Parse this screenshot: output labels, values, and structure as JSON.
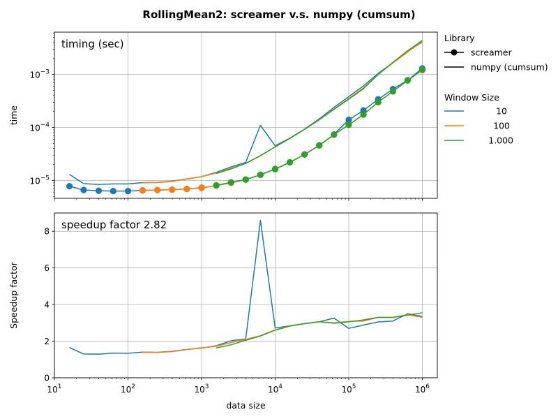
{
  "figure": {
    "title": "RollingMean2:  screamer v.s. numpy (cumsum)"
  },
  "legend": {
    "library_title": "Library",
    "library_items": [
      {
        "label": "screamer",
        "style": "line-marker"
      },
      {
        "label": "numpy (cumsum)",
        "style": "line"
      }
    ],
    "window_title": "Window Size",
    "window_items": [
      {
        "label": "10",
        "color": "#1f77b4"
      },
      {
        "label": "100",
        "color": "#ff7f0e"
      },
      {
        "label": "1.000",
        "color": "#2ca02c"
      }
    ]
  },
  "chart_data": [
    {
      "type": "line",
      "annotation": "timing (sec)",
      "ylabel": "time",
      "xscale": "log",
      "yscale": "log",
      "xlim": [
        10,
        1600000
      ],
      "ylim": [
        4.6e-06,
        0.0063
      ],
      "xticks": [
        {
          "v": 10,
          "base": "10",
          "exp": "1"
        },
        {
          "v": 100,
          "base": "10",
          "exp": "2"
        },
        {
          "v": 1000,
          "base": "10",
          "exp": "3"
        },
        {
          "v": 10000,
          "base": "10",
          "exp": "4"
        },
        {
          "v": 100000,
          "base": "10",
          "exp": "5"
        },
        {
          "v": 1000000,
          "base": "10",
          "exp": "6"
        }
      ],
      "yticks": [
        {
          "v": 1e-05,
          "base": "10",
          "exp": "−5"
        },
        {
          "v": 0.0001,
          "base": "10",
          "exp": "−4"
        },
        {
          "v": 0.001,
          "base": "10",
          "exp": "−3"
        }
      ],
      "grid": true,
      "series": [
        {
          "library": "numpy (cumsum)",
          "window": "10",
          "color": "#1f77b4",
          "marker": false,
          "x": [
            16,
            25,
            40,
            63,
            100,
            158,
            251,
            398,
            631,
            1000,
            1585,
            2512,
            3981,
            6310,
            10000,
            15849,
            25119,
            39811,
            63096,
            100000,
            158489,
            251189,
            398107,
            630957,
            1000000
          ],
          "y": [
            1.3e-05,
            8.7e-06,
            8.4e-06,
            8.6e-06,
            8.6e-06,
            9.1e-06,
            9.2e-06,
            9.7e-06,
            1.07e-05,
            1.18e-05,
            1.42e-05,
            1.8e-05,
            2.2e-05,
            0.00011,
            4.5e-05,
            6.3e-05,
            9.3e-05,
            0.000145,
            0.00024,
            0.00038,
            0.00061,
            0.00105,
            0.00165,
            0.0027,
            0.0041
          ]
        },
        {
          "library": "numpy (cumsum)",
          "window": "100",
          "color": "#ff7f0e",
          "marker": false,
          "x": [
            158,
            251,
            398,
            631,
            1000,
            1585,
            2512,
            3981,
            6310,
            10000,
            15849,
            25119,
            39811,
            63096,
            100000,
            158489,
            251189,
            398107,
            630957,
            1000000
          ],
          "y": [
            9e-06,
            9.1e-06,
            9.6e-06,
            1.06e-05,
            1.18e-05,
            1.38e-05,
            1.7e-05,
            2.1e-05,
            2.9e-05,
            4.3e-05,
            6.2e-05,
            9.2e-05,
            0.00014,
            0.000225,
            0.00035,
            0.00056,
            0.001,
            0.00165,
            0.00265,
            0.0042
          ]
        },
        {
          "library": "numpy (cumsum)",
          "window": "1.000",
          "color": "#2ca02c",
          "marker": false,
          "x": [
            1585,
            2512,
            3981,
            6310,
            10000,
            15849,
            25119,
            39811,
            63096,
            100000,
            158489,
            251189,
            398107,
            630957,
            1000000
          ],
          "y": [
            1.35e-05,
            1.65e-05,
            2.1e-05,
            2.95e-05,
            4.3e-05,
            6.2e-05,
            9.2e-05,
            0.00014,
            0.00022,
            0.00034,
            0.00054,
            0.001,
            0.0017,
            0.0028,
            0.0044
          ]
        },
        {
          "library": "screamer",
          "window": "10",
          "color": "#1f77b4",
          "marker": true,
          "x": [
            16,
            25,
            40,
            63,
            100,
            158,
            251,
            398,
            631,
            1000,
            1585,
            2512,
            3981,
            6310,
            10000,
            15849,
            25119,
            39811,
            63096,
            100000,
            158489,
            251189,
            398107,
            630957,
            1000000
          ],
          "y": [
            7.8e-06,
            6.6e-06,
            6.4e-06,
            6.3e-06,
            6.3e-06,
            6.5e-06,
            6.6e-06,
            6.7e-06,
            6.9e-06,
            7.3e-06,
            8e-06,
            9.1e-06,
            1.04e-05,
            1.28e-05,
            1.65e-05,
            2.2e-05,
            3.1e-05,
            4.6e-05,
            7.4e-05,
            0.00014,
            0.00021,
            0.00034,
            0.00053,
            0.00078,
            0.0013
          ]
        },
        {
          "library": "screamer",
          "window": "100",
          "color": "#ff7f0e",
          "marker": true,
          "x": [
            158,
            251,
            398,
            631,
            1000,
            1585,
            2512,
            3981,
            6310,
            10000,
            15849,
            25119,
            39811,
            63096,
            100000,
            158489,
            251189,
            398107,
            630957,
            1000000
          ],
          "y": [
            6.5e-06,
            6.6e-06,
            6.7e-06,
            6.9e-06,
            7.2e-06,
            8e-06,
            9e-06,
            1.04e-05,
            1.28e-05,
            1.64e-05,
            2.2e-05,
            3.1e-05,
            4.6e-05,
            7.3e-05,
            0.000112,
            0.000175,
            0.0003,
            0.00048,
            0.00077,
            0.00122
          ]
        },
        {
          "library": "screamer",
          "window": "1.000",
          "color": "#2ca02c",
          "marker": true,
          "x": [
            1585,
            2512,
            3981,
            6310,
            10000,
            15849,
            25119,
            39811,
            63096,
            100000,
            158489,
            251189,
            398107,
            630957,
            1000000
          ],
          "y": [
            8.1e-06,
            9.2e-06,
            1.04e-05,
            1.28e-05,
            1.63e-05,
            2.2e-05,
            3.1e-05,
            4.6e-05,
            7.3e-05,
            0.000112,
            0.000175,
            0.0003,
            0.00048,
            0.00077,
            0.00122
          ]
        }
      ]
    },
    {
      "type": "line",
      "annotation": "speedup factor  2.82",
      "ylabel": "Speedup factor",
      "xlabel": "data size",
      "xscale": "log",
      "yscale": "linear",
      "xlim": [
        10,
        1600000
      ],
      "ylim": [
        0,
        9
      ],
      "xticks": [
        {
          "v": 10,
          "base": "10",
          "exp": "1"
        },
        {
          "v": 100,
          "base": "10",
          "exp": "2"
        },
        {
          "v": 1000,
          "base": "10",
          "exp": "3"
        },
        {
          "v": 10000,
          "base": "10",
          "exp": "4"
        },
        {
          "v": 100000,
          "base": "10",
          "exp": "5"
        },
        {
          "v": 1000000,
          "base": "10",
          "exp": "6"
        }
      ],
      "yticks": [
        {
          "v": 0,
          "label": "0"
        },
        {
          "v": 2,
          "label": "2"
        },
        {
          "v": 4,
          "label": "4"
        },
        {
          "v": 6,
          "label": "6"
        },
        {
          "v": 8,
          "label": "8"
        }
      ],
      "grid": true,
      "series": [
        {
          "window": "10",
          "color": "#1f77b4",
          "x": [
            16,
            25,
            40,
            63,
            100,
            158,
            251,
            398,
            631,
            1000,
            1585,
            2512,
            3981,
            6310,
            10000,
            15849,
            25119,
            39811,
            63096,
            100000,
            158489,
            251189,
            398107,
            630957,
            1000000
          ],
          "y": [
            1.65,
            1.3,
            1.29,
            1.35,
            1.34,
            1.4,
            1.39,
            1.45,
            1.55,
            1.62,
            1.75,
            2.02,
            2.12,
            8.6,
            2.72,
            2.84,
            2.95,
            3.06,
            3.26,
            2.7,
            2.88,
            3.05,
            3.1,
            3.5,
            3.35
          ]
        },
        {
          "window": "100",
          "color": "#ff7f0e",
          "x": [
            158,
            251,
            398,
            631,
            1000,
            1585,
            2512,
            3981,
            6310,
            10000,
            15849,
            25119,
            39811,
            63096,
            100000,
            158489,
            251189,
            398107,
            630957,
            1000000
          ],
          "y": [
            1.39,
            1.38,
            1.43,
            1.54,
            1.64,
            1.72,
            1.92,
            2.1,
            2.3,
            2.62,
            2.84,
            2.96,
            3.06,
            3.0,
            3.08,
            3.1,
            3.3,
            3.3,
            3.45,
            3.3
          ]
        },
        {
          "window": "1.000",
          "color": "#2ca02c",
          "x": [
            1585,
            2512,
            3981,
            6310,
            10000,
            15849,
            25119,
            39811,
            63096,
            100000,
            158489,
            251189,
            398107,
            630957,
            1000000
          ],
          "y": [
            1.63,
            1.8,
            2.05,
            2.28,
            2.6,
            2.82,
            2.96,
            3.06,
            2.98,
            3.06,
            3.16,
            3.3,
            3.3,
            3.42,
            3.55
          ]
        }
      ]
    }
  ]
}
